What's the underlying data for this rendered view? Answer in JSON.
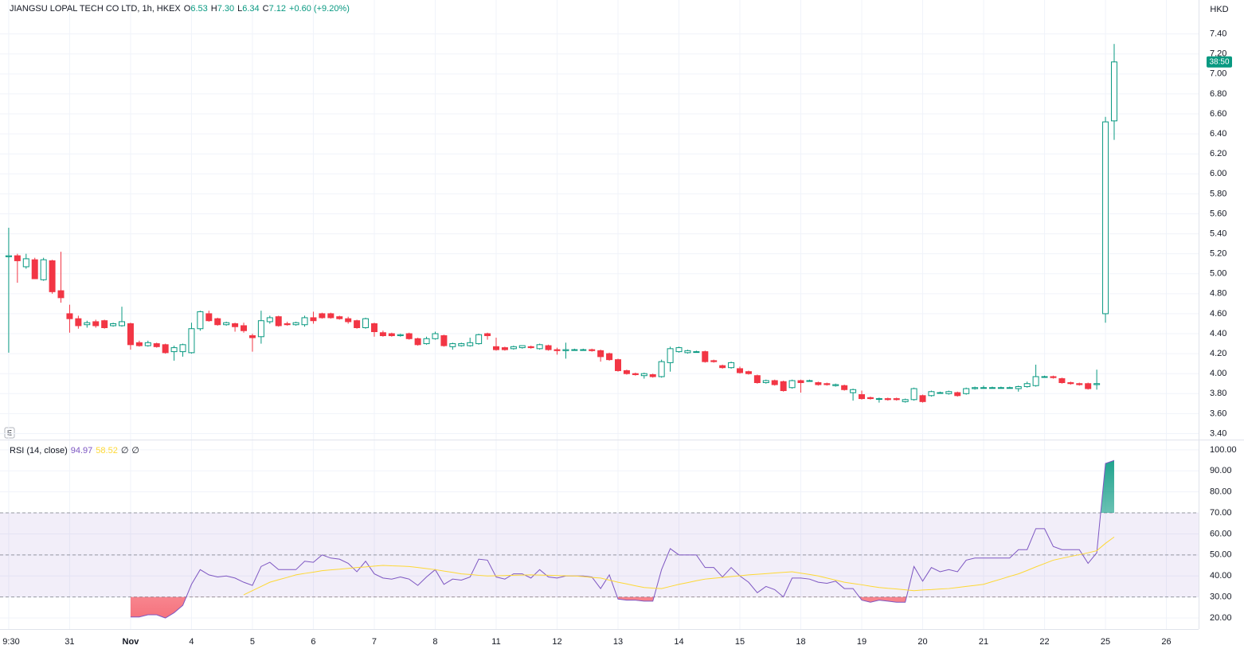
{
  "chart_data": [
    {
      "type": "candlestick",
      "title": "JIANGSU LOPAL TECH CO LTD, 1h, HKEX",
      "currency": "HKD",
      "countdown": "38:50",
      "scale_mark": "E",
      "ohlc_legend": [
        {
          "name": "O",
          "value": {
            "value": 6.53,
            "label": "6.53"
          }
        },
        {
          "name": "H",
          "value": {
            "value": 7.3,
            "label": "7.30"
          }
        },
        {
          "name": "L",
          "value": {
            "value": 6.34,
            "label": "6.34"
          }
        },
        {
          "name": "C",
          "value": {
            "value": 7.12,
            "label": "7.12"
          }
        }
      ],
      "change": "+0.60 (+9.20%)",
      "up_color": "#089981",
      "down_color": "#f23645",
      "grid": true,
      "open": [
        5.17,
        5.18,
        5.07,
        5.14,
        4.94,
        5.13,
        4.83,
        4.6,
        4.55,
        4.49,
        4.52,
        4.53,
        4.48,
        4.48,
        4.5,
        4.31,
        4.28,
        4.3,
        4.29,
        4.22,
        4.22,
        4.21,
        4.45,
        4.6,
        4.55,
        4.49,
        4.5,
        4.48,
        4.38,
        4.37,
        4.52,
        4.57,
        4.5,
        4.49,
        4.49,
        4.56,
        4.6,
        4.6,
        4.57,
        4.55,
        4.53,
        4.46,
        4.5,
        4.41,
        4.4,
        4.38,
        4.4,
        4.35,
        4.3,
        4.35,
        4.38,
        4.27,
        4.28,
        4.28,
        4.3,
        4.4,
        4.27,
        4.26,
        4.25,
        4.26,
        4.27,
        4.25,
        4.28,
        4.24,
        4.23,
        4.24,
        4.24,
        4.24,
        4.23,
        4.2,
        4.14,
        4.03,
        4.0,
        3.98,
        3.99,
        3.97,
        4.11,
        4.22,
        4.21,
        4.22,
        4.22,
        4.13,
        4.08,
        4.06,
        4.05,
        4.02,
        3.98,
        3.91,
        3.93,
        3.92,
        3.86,
        3.93,
        3.93,
        3.91,
        3.9,
        3.88,
        3.88,
        3.81,
        3.79,
        3.76,
        3.75,
        3.75,
        3.75,
        3.72,
        3.74,
        3.78,
        3.78,
        3.81,
        3.8,
        3.81,
        3.8,
        3.85,
        3.86,
        3.86,
        3.86,
        3.86,
        3.85,
        3.87,
        3.88,
        3.97,
        3.97,
        3.95,
        3.91,
        3.9,
        3.9,
        3.89,
        4.6,
        6.53
      ],
      "high": [
        5.46,
        5.2,
        5.2,
        5.16,
        5.16,
        5.14,
        5.22,
        4.69,
        4.58,
        4.53,
        4.54,
        4.54,
        4.51,
        4.67,
        4.51,
        4.33,
        4.33,
        4.31,
        4.3,
        4.28,
        4.3,
        4.51,
        4.63,
        4.63,
        4.56,
        4.52,
        4.51,
        4.51,
        4.4,
        4.63,
        4.58,
        4.58,
        4.52,
        4.52,
        4.58,
        4.62,
        4.61,
        4.61,
        4.58,
        4.57,
        4.54,
        4.56,
        4.51,
        4.43,
        4.41,
        4.4,
        4.41,
        4.36,
        4.37,
        4.42,
        4.39,
        4.31,
        4.31,
        4.36,
        4.4,
        4.41,
        4.36,
        4.27,
        4.28,
        4.28,
        4.28,
        4.3,
        4.29,
        4.26,
        4.31,
        4.25,
        4.25,
        4.25,
        4.24,
        4.21,
        4.15,
        4.04,
        4.01,
        4.01,
        4.0,
        4.14,
        4.27,
        4.27,
        4.24,
        4.23,
        4.23,
        4.14,
        4.09,
        4.12,
        4.07,
        4.03,
        3.99,
        3.94,
        3.94,
        3.93,
        3.94,
        3.94,
        3.94,
        3.92,
        3.91,
        3.9,
        3.89,
        3.85,
        3.83,
        3.77,
        3.76,
        3.76,
        3.76,
        3.75,
        3.86,
        3.79,
        3.83,
        3.82,
        3.83,
        3.82,
        3.86,
        3.87,
        3.88,
        3.87,
        3.87,
        3.87,
        3.88,
        3.92,
        4.09,
        3.98,
        3.98,
        3.96,
        3.92,
        3.91,
        3.91,
        4.04,
        6.57,
        7.3
      ],
      "low": [
        4.21,
        4.91,
        5.05,
        4.95,
        4.93,
        4.8,
        4.71,
        4.41,
        4.45,
        4.46,
        4.46,
        4.45,
        4.47,
        4.47,
        4.24,
        4.27,
        4.27,
        4.26,
        4.2,
        4.13,
        4.17,
        4.2,
        4.43,
        4.52,
        4.48,
        4.48,
        4.42,
        4.41,
        4.22,
        4.3,
        4.5,
        4.47,
        4.48,
        4.48,
        4.47,
        4.5,
        4.55,
        4.55,
        4.54,
        4.5,
        4.45,
        4.45,
        4.37,
        4.37,
        4.37,
        4.37,
        4.34,
        4.28,
        4.29,
        4.34,
        4.27,
        4.24,
        4.27,
        4.27,
        4.29,
        4.34,
        4.23,
        4.23,
        4.24,
        4.25,
        4.25,
        4.24,
        4.23,
        4.19,
        4.15,
        4.23,
        4.23,
        4.22,
        4.12,
        4.13,
        4.02,
        3.99,
        3.98,
        3.95,
        3.96,
        3.96,
        4.02,
        4.21,
        4.2,
        4.21,
        4.11,
        4.11,
        4.05,
        4.05,
        4.0,
        3.99,
        3.9,
        3.9,
        3.88,
        3.82,
        3.85,
        3.81,
        3.92,
        3.88,
        3.88,
        3.87,
        3.83,
        3.73,
        3.74,
        3.74,
        3.71,
        3.73,
        3.73,
        3.71,
        3.73,
        3.71,
        3.77,
        3.8,
        3.79,
        3.77,
        3.79,
        3.84,
        3.85,
        3.85,
        3.85,
        3.85,
        3.82,
        3.86,
        3.87,
        3.96,
        3.95,
        3.9,
        3.89,
        3.88,
        3.84,
        3.84,
        4.51,
        6.34
      ],
      "close": [
        5.18,
        5.13,
        5.15,
        4.95,
        5.14,
        4.82,
        4.76,
        4.55,
        4.48,
        4.51,
        4.48,
        4.46,
        4.5,
        4.52,
        4.29,
        4.28,
        4.31,
        4.27,
        4.21,
        4.26,
        4.29,
        4.45,
        4.62,
        4.53,
        4.49,
        4.51,
        4.47,
        4.43,
        4.36,
        4.53,
        4.56,
        4.48,
        4.49,
        4.51,
        4.56,
        4.53,
        4.56,
        4.56,
        4.55,
        4.52,
        4.46,
        4.55,
        4.42,
        4.38,
        4.38,
        4.39,
        4.35,
        4.29,
        4.35,
        4.4,
        4.28,
        4.3,
        4.3,
        4.31,
        4.39,
        4.38,
        4.24,
        4.24,
        4.27,
        4.28,
        4.26,
        4.29,
        4.24,
        4.23,
        4.24,
        4.24,
        4.24,
        4.23,
        4.17,
        4.14,
        4.03,
        4.0,
        3.99,
        4.0,
        3.97,
        4.12,
        4.25,
        4.26,
        4.23,
        4.22,
        4.12,
        4.12,
        4.06,
        4.11,
        4.01,
        4.0,
        3.91,
        3.93,
        3.89,
        3.83,
        3.93,
        3.91,
        3.93,
        3.89,
        3.89,
        3.89,
        3.84,
        3.84,
        3.75,
        3.75,
        3.75,
        3.74,
        3.74,
        3.74,
        3.85,
        3.72,
        3.82,
        3.81,
        3.82,
        3.78,
        3.85,
        3.86,
        3.86,
        3.86,
        3.86,
        3.86,
        3.87,
        3.9,
        3.97,
        3.97,
        3.96,
        3.91,
        3.9,
        3.89,
        3.85,
        3.9,
        6.52,
        7.12
      ],
      "xlim": [
        -1,
        136.7
      ],
      "xticks": [
        {
          "value": 0,
          "label": "9:30"
        },
        {
          "value": 7,
          "label": "31"
        },
        {
          "value": 14,
          "label": "Nov"
        },
        {
          "value": 21,
          "label": "4"
        },
        {
          "value": 28,
          "label": "5"
        },
        {
          "value": 35,
          "label": "6"
        },
        {
          "value": 42,
          "label": "7"
        },
        {
          "value": 49,
          "label": "8"
        },
        {
          "value": 56,
          "label": "11"
        },
        {
          "value": 63,
          "label": "12"
        },
        {
          "value": 70,
          "label": "13"
        },
        {
          "value": 77,
          "label": "14"
        },
        {
          "value": 84,
          "label": "15"
        },
        {
          "value": 91,
          "label": "18"
        },
        {
          "value": 98,
          "label": "19"
        },
        {
          "value": 105,
          "label": "20"
        },
        {
          "value": 112,
          "label": "21"
        },
        {
          "value": 119,
          "label": "22"
        },
        {
          "value": 126,
          "label": "25"
        },
        {
          "value": 133,
          "label": "26"
        }
      ],
      "ylim": [
        3.34,
        7.74
      ],
      "yticks": [
        {
          "value": 3.4,
          "label": "3.40"
        },
        {
          "value": 3.6,
          "label": "3.60"
        },
        {
          "value": 3.8,
          "label": "3.80"
        },
        {
          "value": 4.0,
          "label": "4.00"
        },
        {
          "value": 4.2,
          "label": "4.20"
        },
        {
          "value": 4.4,
          "label": "4.40"
        },
        {
          "value": 4.6,
          "label": "4.60"
        },
        {
          "value": 4.8,
          "label": "4.80"
        },
        {
          "value": 5.0,
          "label": "5.00"
        },
        {
          "value": 5.2,
          "label": "5.20"
        },
        {
          "value": 5.4,
          "label": "5.40"
        },
        {
          "value": 5.6,
          "label": "5.60"
        },
        {
          "value": 5.8,
          "label": "5.80"
        },
        {
          "value": 6.0,
          "label": "6.00"
        },
        {
          "value": 6.2,
          "label": "6.20"
        },
        {
          "value": 6.4,
          "label": "6.40"
        },
        {
          "value": 6.6,
          "label": "6.60"
        },
        {
          "value": 6.8,
          "label": "6.80"
        },
        {
          "value": 7.0,
          "label": "7.00"
        },
        {
          "value": 7.2,
          "label": "7.20"
        },
        {
          "value": 7.4,
          "label": "7.40"
        }
      ]
    },
    {
      "type": "line",
      "title": "RSI (14, close)",
      "legend_extra": [
        "∅",
        "∅"
      ],
      "grid": true,
      "band_upper": 70,
      "band_middle": 50,
      "band_lower": 30,
      "band_color": "#7e57c2",
      "overbought_color": "#089981",
      "oversold_color": "#f23645",
      "series": [
        {
          "color": "#7e57c2",
          "values": [
            null,
            null,
            null,
            null,
            null,
            null,
            null,
            null,
            null,
            null,
            null,
            null,
            null,
            null,
            20.5,
            20.5,
            21.5,
            21.5,
            20,
            22.5,
            26,
            36,
            43,
            40.5,
            39.5,
            40,
            39,
            37,
            35.5,
            44.5,
            46.5,
            43,
            43,
            43,
            47,
            46.5,
            50,
            48.5,
            48,
            46,
            42,
            47,
            41,
            39,
            38.5,
            39.5,
            38.5,
            35.5,
            39.5,
            43,
            36,
            38.5,
            38,
            39.5,
            48,
            47.5,
            39.5,
            38.5,
            41,
            41,
            39,
            43,
            39.5,
            39,
            40,
            40,
            40,
            39.5,
            34,
            40.5,
            29,
            28.5,
            28.5,
            28,
            28,
            43,
            53,
            50,
            50,
            50,
            44,
            44,
            39.5,
            44,
            40,
            37,
            32,
            35,
            33.5,
            30,
            39,
            39,
            38.5,
            37,
            36.5,
            37.5,
            34,
            34,
            28.5,
            27.5,
            28.5,
            28,
            27.5,
            27.5,
            44.5,
            37.5,
            44,
            42,
            43,
            42,
            47.5,
            48.5,
            48.5,
            48.5,
            48.5,
            48.5,
            52.5,
            52.5,
            62.5,
            62.5,
            54,
            52.5,
            52.5,
            52.5,
            46,
            51,
            93.5,
            94.97
          ]
        },
        {
          "color": "#fdd835",
          "values": [
            null,
            null,
            null,
            null,
            null,
            null,
            null,
            null,
            null,
            null,
            null,
            null,
            null,
            null,
            null,
            null,
            null,
            null,
            null,
            null,
            null,
            null,
            null,
            null,
            null,
            null,
            null,
            31,
            33,
            35,
            37,
            38.2,
            39.3,
            40.5,
            41.2,
            41.8,
            42.5,
            42.9,
            43.2,
            43.6,
            44,
            44.3,
            44.7,
            45,
            44.8,
            44.7,
            44.5,
            44,
            43.5,
            43,
            42.3,
            41.7,
            41,
            40.7,
            40.3,
            40,
            40.1,
            40.2,
            40.3,
            40.4,
            40.5,
            40.4,
            40.3,
            40.2,
            40.1,
            40,
            39.7,
            39.3,
            39,
            38,
            37,
            36.2,
            35.3,
            34.5,
            34.2,
            34,
            35,
            36,
            36.8,
            37.7,
            38.5,
            38.9,
            39.3,
            39.7,
            40.1,
            40.5,
            40.8,
            41.1,
            41.4,
            41.7,
            42,
            41.3,
            40.7,
            40,
            39,
            38,
            37,
            36.4,
            35.8,
            35.1,
            34.5,
            34.1,
            33.8,
            33.4,
            33,
            33.3,
            33.5,
            33.8,
            34,
            34.5,
            35,
            35.5,
            36,
            37.3,
            38.5,
            39.8,
            41,
            42.6,
            44.3,
            45.9,
            47.5,
            48.4,
            49.3,
            50.1,
            51,
            52,
            55.5,
            58.52
          ]
        }
      ],
      "ylim": [
        14.7,
        104.5
      ],
      "yticks": [
        {
          "value": 20,
          "label": "20.00"
        },
        {
          "value": 30,
          "label": "30.00"
        },
        {
          "value": 40,
          "label": "40.00"
        },
        {
          "value": 50,
          "label": "50.00"
        },
        {
          "value": 60,
          "label": "60.00"
        },
        {
          "value": 70,
          "label": "70.00"
        },
        {
          "value": 80,
          "label": "80.00"
        },
        {
          "value": 90,
          "label": "90.00"
        },
        {
          "value": 100,
          "label": "100.00"
        }
      ]
    }
  ]
}
